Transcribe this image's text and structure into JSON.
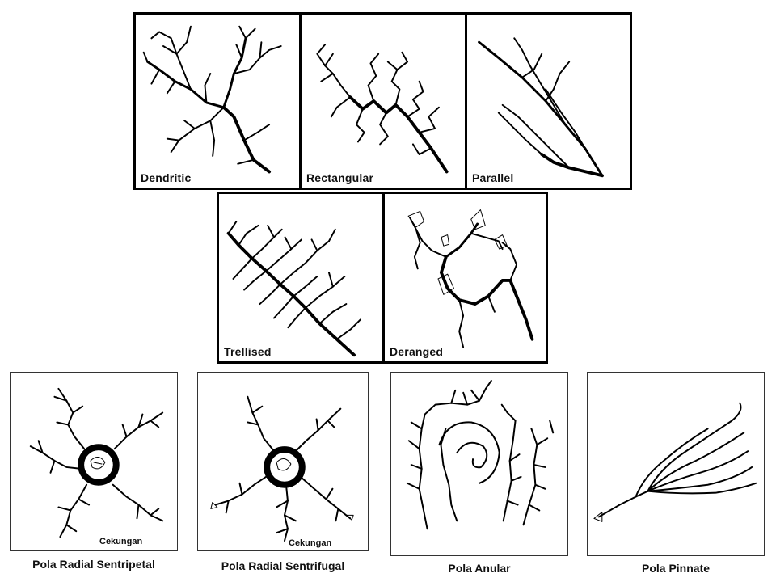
{
  "patterns": {
    "dendritic": "Dendritic",
    "rectangular": "Rectangular",
    "parallel": "Parallel",
    "trellised": "Trellised",
    "deranged": "Deranged",
    "radial_centripetal": "Pola Radial Sentripetal",
    "radial_centrifugal": "Pola Radial Sentrifugal",
    "annular": "Pola Anular",
    "pinnate": "Pola Pinnate"
  },
  "inner_labels": {
    "cekungan_a": "Cekungan",
    "cekungan_b": "Cekungan"
  }
}
